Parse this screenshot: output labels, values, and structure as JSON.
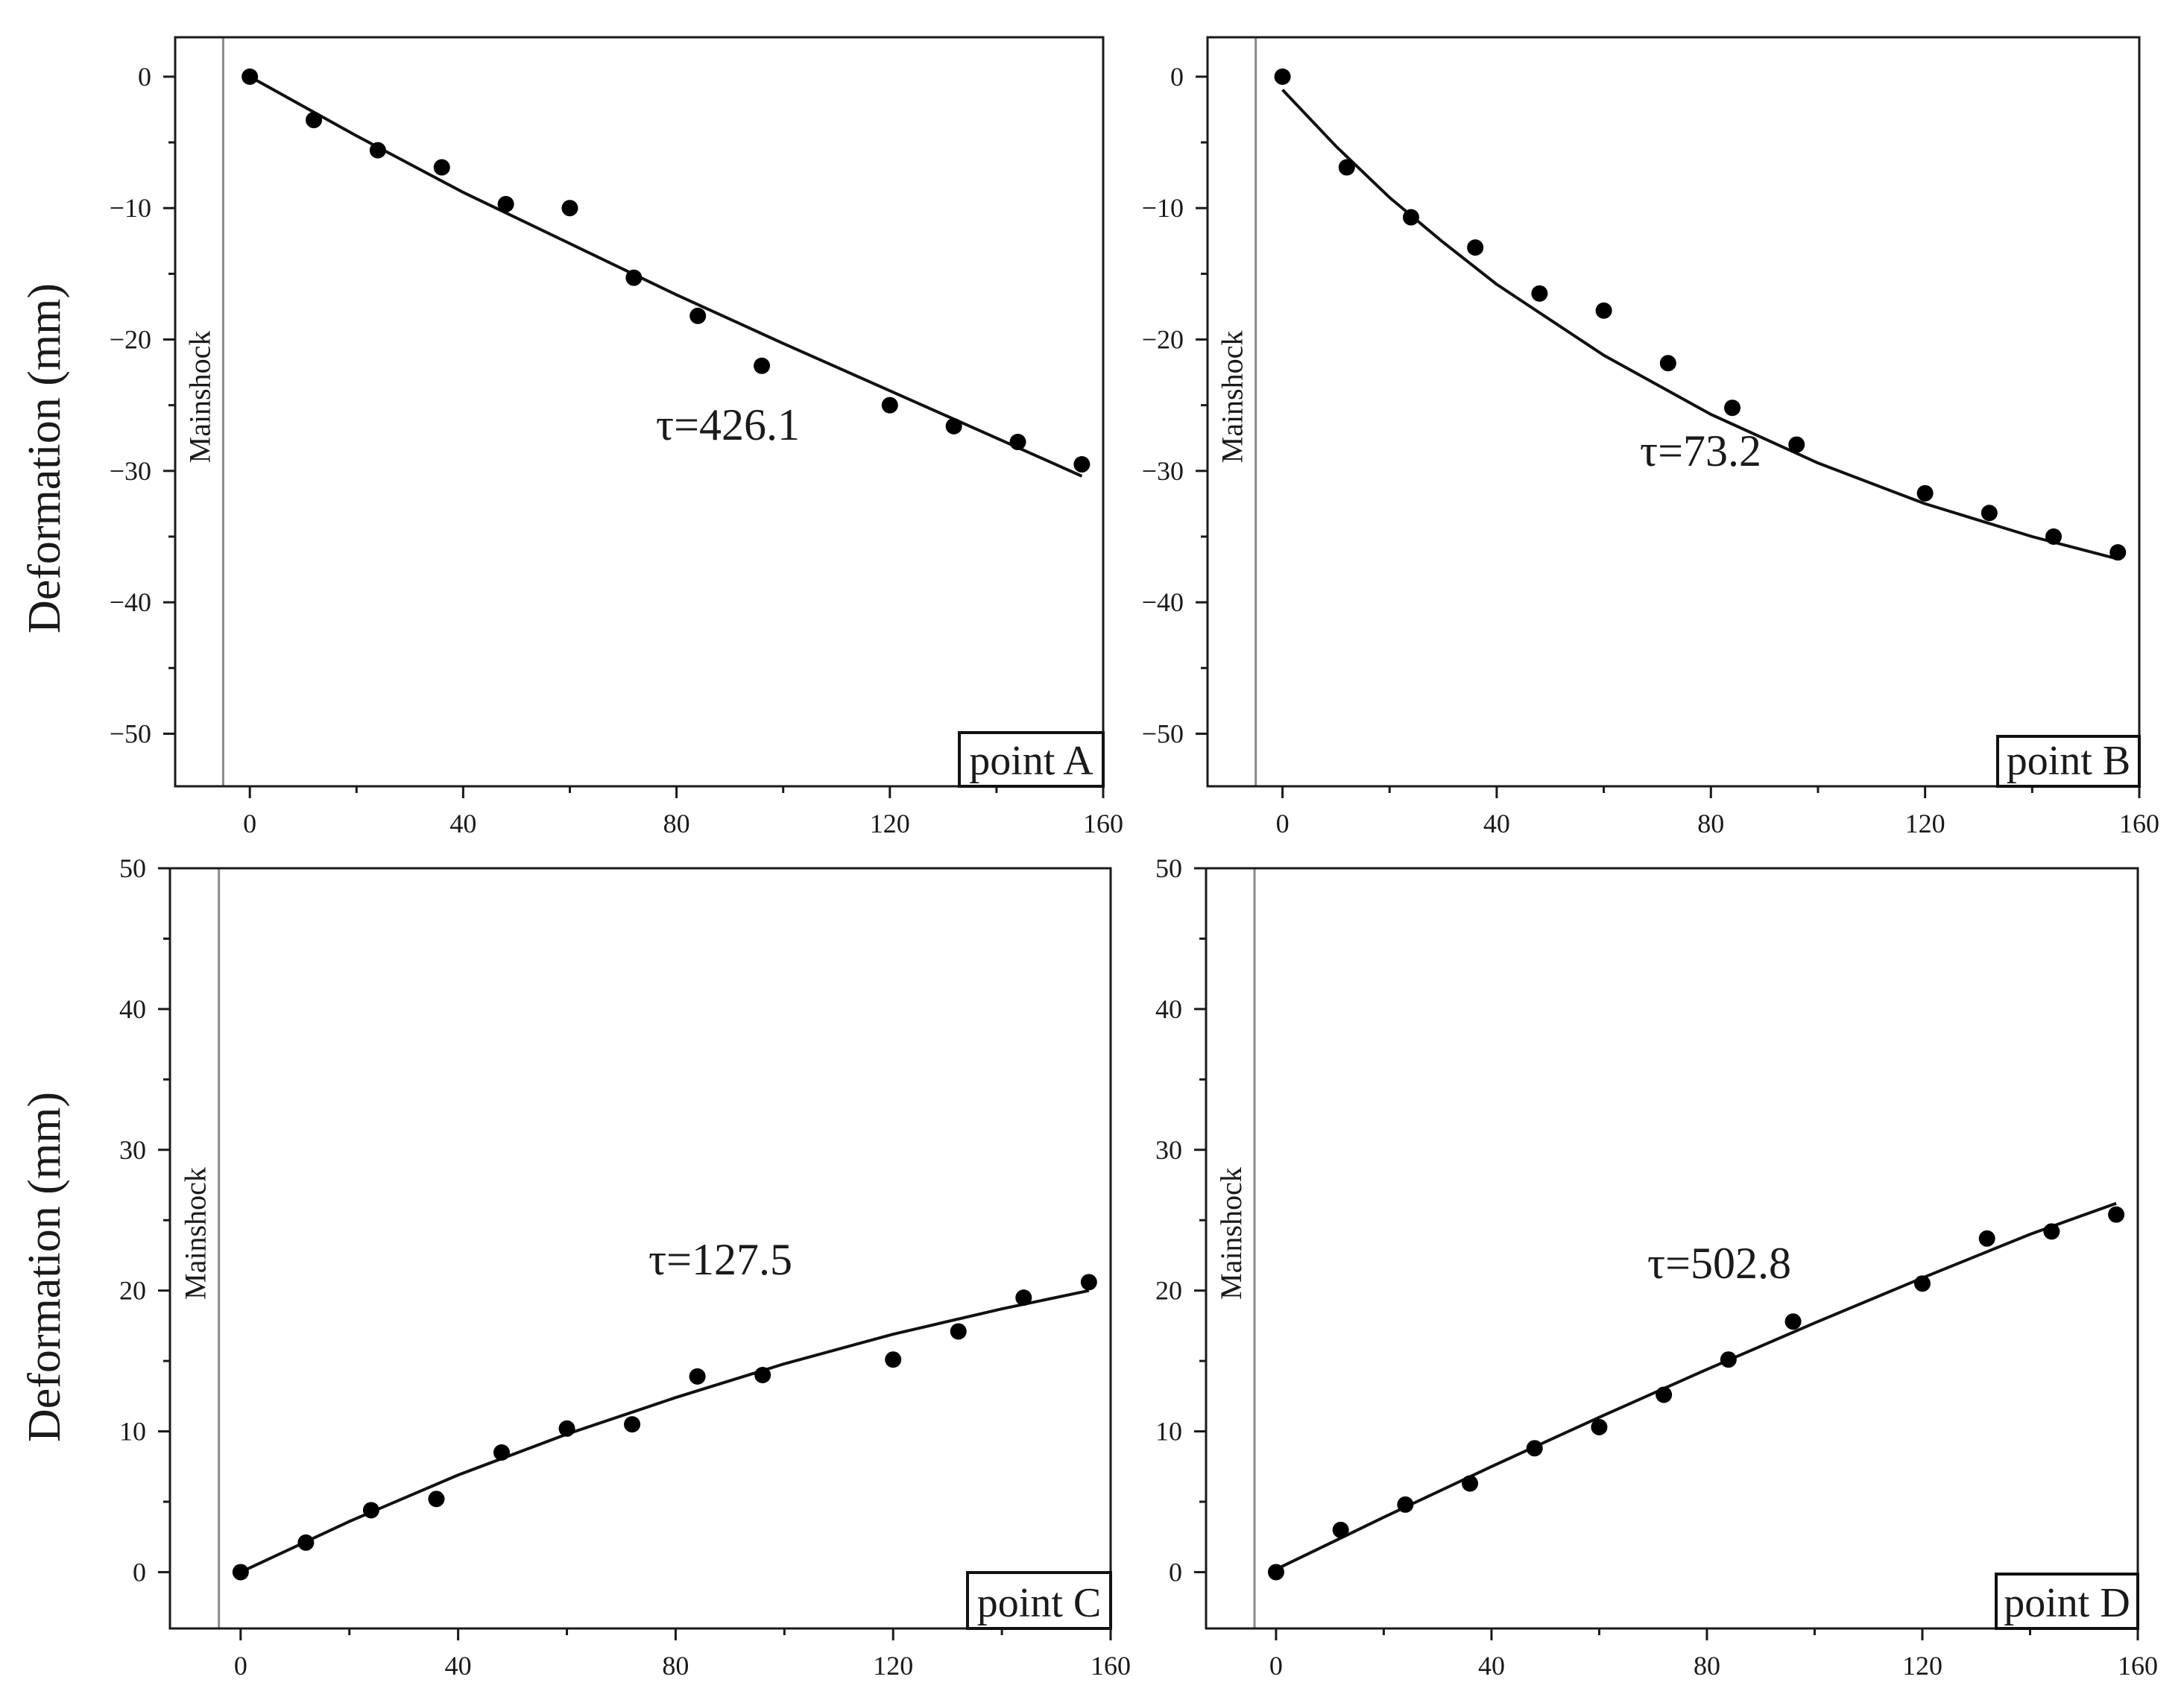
{
  "figure": {
    "ylabel": "Deformation (mm)",
    "marker_label": "Mainshock"
  },
  "chart_data": [
    {
      "type": "scatter",
      "panel_label": "point A",
      "tau_label": "τ=426.1",
      "ylabel": "Deformation (mm)",
      "xlim": [
        -14,
        160
      ],
      "ylim": [
        -54,
        3
      ],
      "xticks": [
        0,
        40,
        80,
        120,
        160
      ],
      "yticks": [
        0,
        -10,
        -20,
        -30,
        -40,
        -50
      ],
      "mainshock_x": -5,
      "series": [
        {
          "kind": "points",
          "x": [
            0,
            12,
            24,
            36,
            48,
            60,
            72,
            84,
            96,
            120,
            132,
            144,
            156
          ],
          "y": [
            0,
            -3.3,
            -5.6,
            -6.9,
            -9.7,
            -10.0,
            -15.3,
            -18.2,
            -22.0,
            -25.0,
            -26.6,
            -27.8,
            -29.5
          ]
        },
        {
          "kind": "fit",
          "x": [
            0,
            20,
            40,
            60,
            80,
            100,
            120,
            140,
            156
          ],
          "y": [
            0,
            -4.5,
            -8.8,
            -12.7,
            -16.6,
            -20.3,
            -23.9,
            -27.5,
            -30.4
          ]
        }
      ]
    },
    {
      "type": "scatter",
      "panel_label": "point B",
      "tau_label": "τ=73.2",
      "ylabel": "",
      "xlim": [
        -14,
        160
      ],
      "ylim": [
        -54,
        3
      ],
      "xticks": [
        0,
        40,
        80,
        120,
        160
      ],
      "yticks": [
        0,
        -10,
        -20,
        -30,
        -40,
        -50
      ],
      "mainshock_x": -5,
      "series": [
        {
          "kind": "points",
          "x": [
            0,
            12,
            24,
            36,
            48,
            60,
            72,
            84,
            96,
            120,
            132,
            144,
            156
          ],
          "y": [
            0,
            -6.9,
            -10.7,
            -13.0,
            -16.5,
            -17.8,
            -21.8,
            -25.2,
            -28.0,
            -31.7,
            -33.2,
            -35.0,
            -36.2
          ]
        },
        {
          "kind": "fit",
          "x": [
            0,
            10,
            20,
            30,
            40,
            60,
            80,
            100,
            120,
            140,
            156
          ],
          "y": [
            -1.0,
            -5.3,
            -9.2,
            -12.6,
            -15.8,
            -21.2,
            -25.7,
            -29.4,
            -32.5,
            -35.0,
            -36.7
          ]
        }
      ]
    },
    {
      "type": "scatter",
      "panel_label": "point C",
      "tau_label": "τ=127.5",
      "ylabel": "Deformation (mm)",
      "xlim": [
        -13,
        160
      ],
      "ylim": [
        -4,
        50
      ],
      "xticks": [
        0,
        40,
        80,
        120,
        160
      ],
      "yticks": [
        0,
        10,
        20,
        30,
        40,
        50
      ],
      "mainshock_x": -4,
      "series": [
        {
          "kind": "points",
          "x": [
            0,
            12,
            24,
            36,
            48,
            60,
            72,
            84,
            96,
            120,
            132,
            144,
            156
          ],
          "y": [
            0,
            2.1,
            4.4,
            5.2,
            8.5,
            10.2,
            10.5,
            13.9,
            14.0,
            15.1,
            17.1,
            19.5,
            20.6
          ]
        },
        {
          "kind": "fit",
          "x": [
            0,
            20,
            40,
            60,
            80,
            100,
            120,
            140,
            156
          ],
          "y": [
            0,
            3.6,
            6.9,
            9.8,
            12.4,
            14.8,
            16.9,
            18.7,
            20.0
          ]
        }
      ]
    },
    {
      "type": "scatter",
      "panel_label": "point D",
      "tau_label": "τ=502.8",
      "ylabel": "",
      "xlim": [
        -13,
        160
      ],
      "ylim": [
        -4,
        50
      ],
      "xticks": [
        0,
        40,
        80,
        120,
        160
      ],
      "yticks": [
        0,
        10,
        20,
        30,
        40,
        50
      ],
      "mainshock_x": -4,
      "series": [
        {
          "kind": "points",
          "x": [
            0,
            12,
            24,
            36,
            48,
            60,
            72,
            84,
            96,
            120,
            132,
            144,
            156
          ],
          "y": [
            0,
            3.0,
            4.8,
            6.3,
            8.8,
            10.3,
            12.6,
            15.1,
            17.8,
            20.5,
            23.7,
            24.2,
            25.4
          ]
        },
        {
          "kind": "fit",
          "x": [
            0,
            20,
            40,
            60,
            80,
            100,
            120,
            140,
            156
          ],
          "y": [
            0.2,
            3.9,
            7.5,
            11.0,
            14.4,
            17.7,
            20.9,
            24.0,
            26.2
          ]
        }
      ]
    }
  ]
}
